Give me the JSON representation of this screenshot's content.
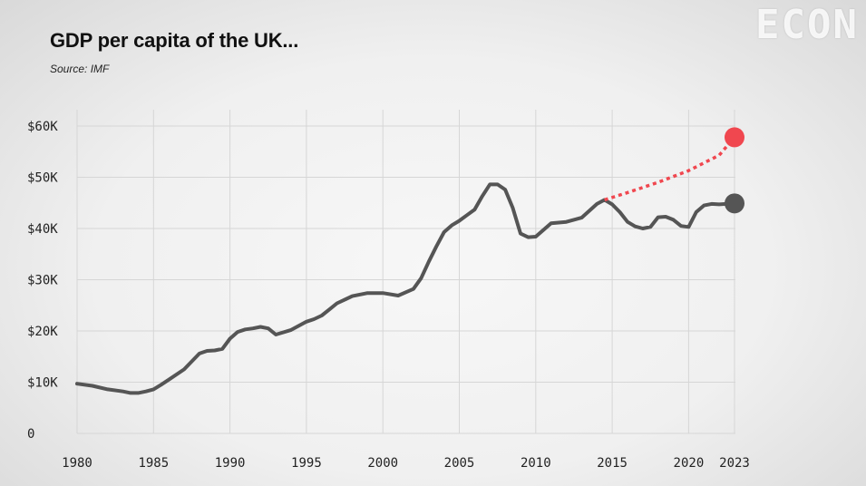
{
  "header": {
    "title": "GDP per capita of the UK...",
    "source": "Source: IMF",
    "brand": "ECON"
  },
  "chart_data": {
    "type": "line",
    "title": "GDP per capita of the UK...",
    "subtitle": "Source: IMF",
    "xlabel": "",
    "ylabel": "",
    "xlim": [
      1980,
      2023
    ],
    "ylim": [
      0,
      60000
    ],
    "x_ticks": [
      1980,
      1985,
      1990,
      1995,
      2000,
      2005,
      2010,
      2015,
      2020,
      2023
    ],
    "x_tick_labels": [
      "1980",
      "1985",
      "1990",
      "1995",
      "2000",
      "2005",
      "2010",
      "2015",
      "2020",
      "2023"
    ],
    "y_ticks": [
      0,
      10000,
      20000,
      30000,
      40000,
      50000,
      60000
    ],
    "y_tick_labels": [
      "0",
      "$10K",
      "$20K",
      "$30K",
      "$40K",
      "$50K",
      "$60K"
    ],
    "grid": true,
    "colors": {
      "actual": "#555555",
      "projection": "#f0474f",
      "grid": "#d6d6d6"
    },
    "series": [
      {
        "style": "solid",
        "x": [
          1980,
          1981,
          1982,
          1983,
          1983.5,
          1984,
          1984.5,
          1985,
          1985.5,
          1986,
          1987,
          1988,
          1988.5,
          1989,
          1989.5,
          1990,
          1990.5,
          1991,
          1991.5,
          1992,
          1992.5,
          1993,
          1994,
          1995,
          1995.5,
          1996,
          1996.5,
          1997,
          1998,
          1999,
          2000,
          2001,
          2002,
          2002.5,
          2003,
          2003.5,
          2004,
          2004.5,
          2005,
          2005.5,
          2006,
          2006.5,
          2007,
          2007.5,
          2008,
          2008.5,
          2009,
          2009.5,
          2010,
          2011,
          2012,
          2013,
          2014,
          2014.5,
          2015,
          2015.5,
          2016,
          2016.5,
          2017,
          2017.5,
          2018,
          2018.5,
          2019,
          2019.5,
          2020,
          2020.5,
          2021,
          2021.5,
          2022,
          2023
        ],
        "values": [
          9700,
          9300,
          8600,
          8200,
          7900,
          7900,
          8200,
          8600,
          9500,
          10500,
          12500,
          15600,
          16100,
          16200,
          16500,
          18500,
          19800,
          20300,
          20500,
          20800,
          20500,
          19300,
          20200,
          21800,
          22300,
          23000,
          24200,
          25400,
          26800,
          27400,
          27400,
          26900,
          28200,
          30300,
          33500,
          36500,
          39300,
          40600,
          41500,
          42600,
          43700,
          46300,
          48600,
          48600,
          47600,
          44000,
          39000,
          38300,
          38400,
          41000,
          41300,
          42100,
          44800,
          45600,
          44700,
          43200,
          41300,
          40400,
          40000,
          40300,
          42200,
          42300,
          41700,
          40500,
          40300,
          43200,
          44500,
          44800,
          44700,
          44900
        ]
      },
      {
        "style": "dotted",
        "x": [
          2014.5,
          2016,
          2018,
          2020,
          2022,
          2023
        ],
        "values": [
          45600,
          47000,
          49000,
          51300,
          54300,
          57800
        ]
      }
    ],
    "markers": [
      {
        "x": 2023,
        "value": 44900,
        "color": "#555555"
      },
      {
        "x": 2023,
        "value": 57800,
        "color": "#f0474f"
      }
    ]
  }
}
